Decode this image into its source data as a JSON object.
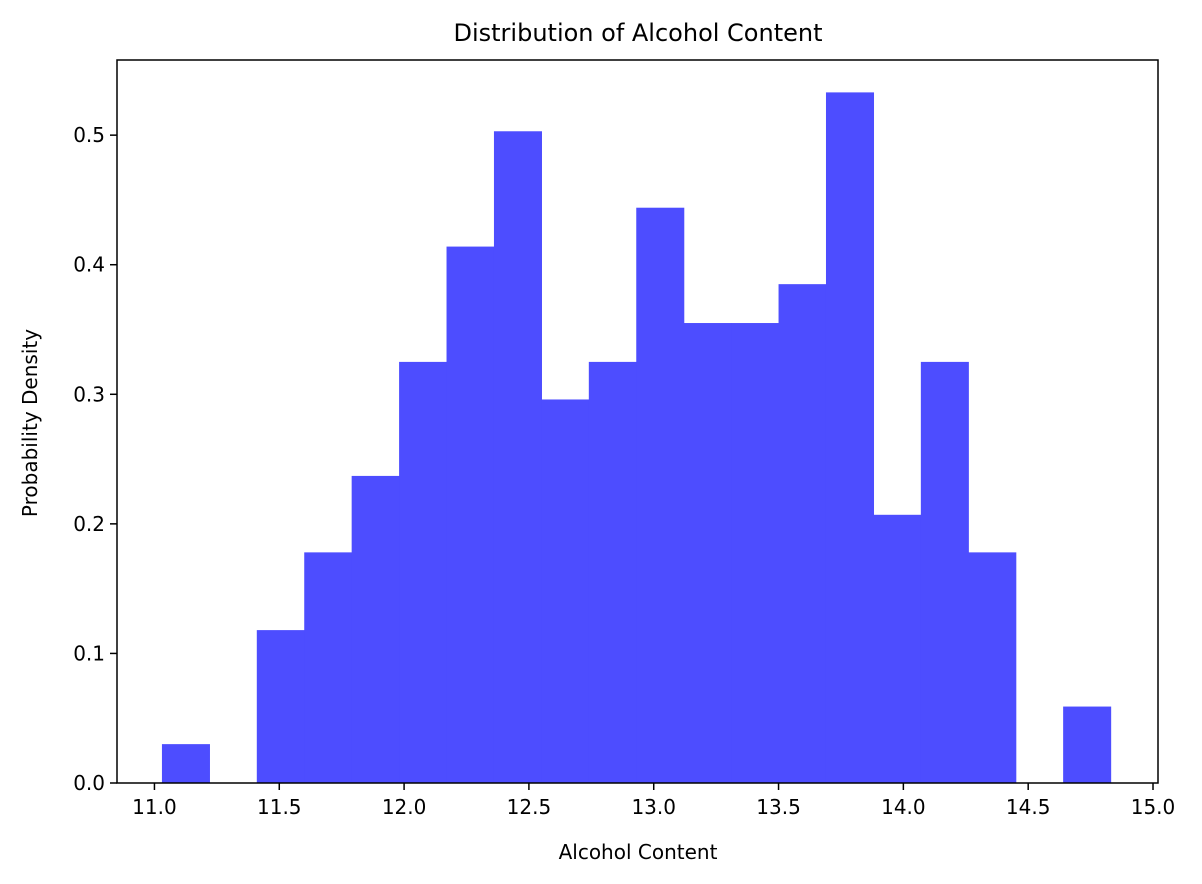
{
  "chart_data": {
    "type": "bar",
    "title": "Distribution of Alcohol Content",
    "xlabel": "Alcohol Content",
    "ylabel": "Probability Density",
    "xlim": [
      10.85,
      15.02
    ],
    "ylim": [
      0,
      0.558
    ],
    "xticks": [
      11.0,
      11.5,
      12.0,
      12.5,
      13.0,
      13.5,
      14.0,
      14.5,
      15.0
    ],
    "xtick_labels": [
      "11.0",
      "11.5",
      "12.0",
      "12.5",
      "13.0",
      "13.5",
      "14.0",
      "14.5",
      "15.0"
    ],
    "yticks": [
      0.0,
      0.1,
      0.2,
      0.3,
      0.4,
      0.5
    ],
    "ytick_labels": [
      "0.0",
      "0.1",
      "0.2",
      "0.3",
      "0.4",
      "0.5"
    ],
    "grid": false,
    "bar_color": "#4d4dff",
    "bin_edges": [
      11.03,
      11.22,
      11.41,
      11.6,
      11.79,
      11.98,
      12.17,
      12.36,
      12.55,
      12.74,
      12.93,
      13.12,
      13.31,
      13.5,
      13.69,
      13.88,
      14.07,
      14.26,
      14.45,
      14.64,
      14.83
    ],
    "values": [
      0.03,
      0.0,
      0.118,
      0.178,
      0.237,
      0.325,
      0.414,
      0.503,
      0.296,
      0.325,
      0.444,
      0.355,
      0.355,
      0.385,
      0.533,
      0.207,
      0.325,
      0.178,
      0.0,
      0.059
    ]
  }
}
